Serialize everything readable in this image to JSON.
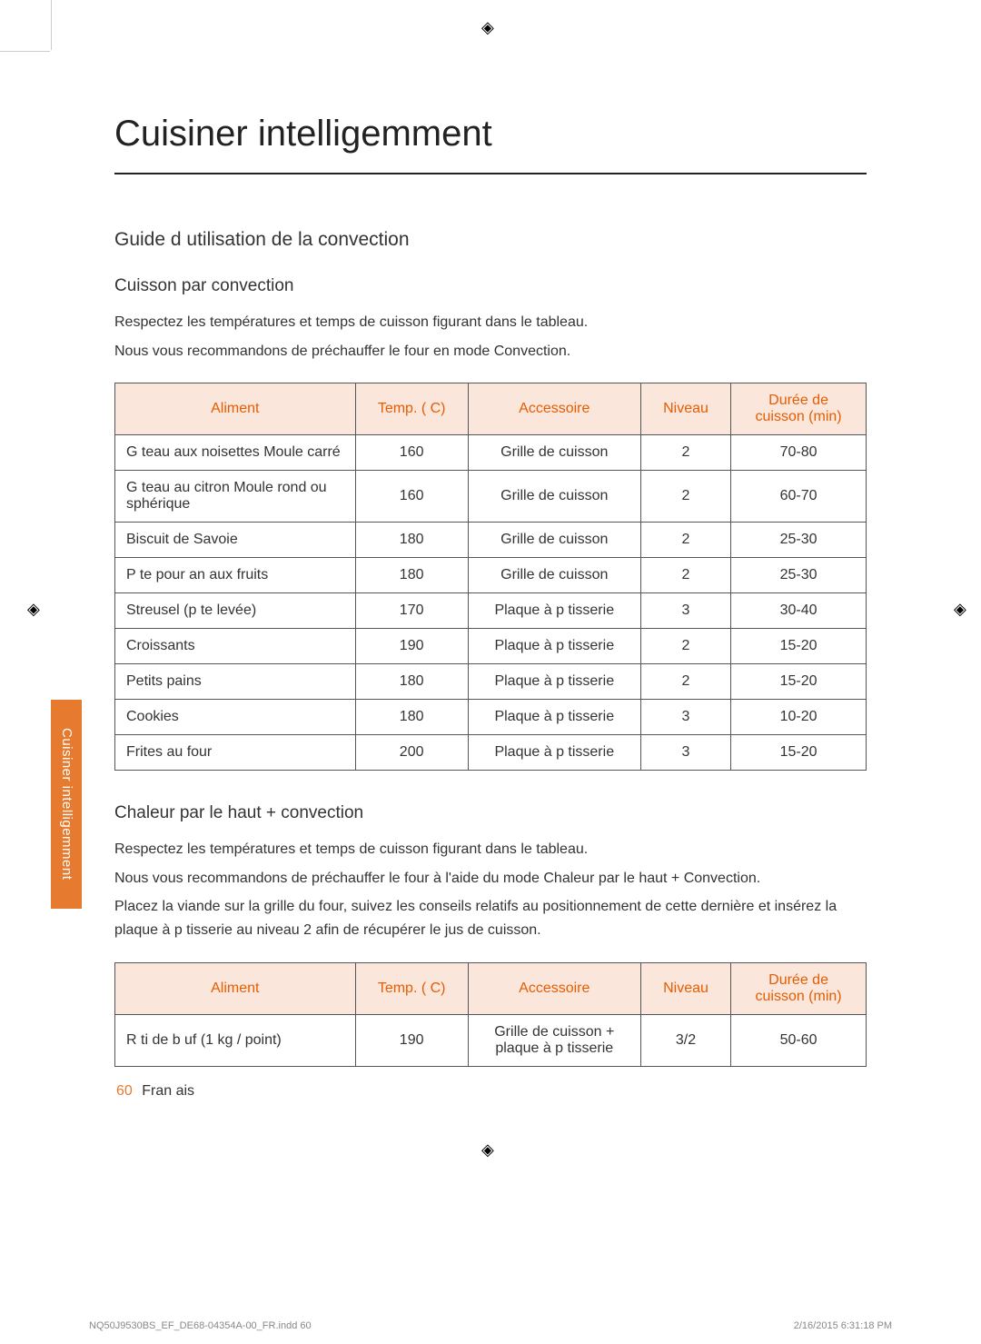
{
  "title": "Cuisiner intelligemment",
  "sideTab": "Cuisiner intelligemment",
  "section1_heading": "Guide d utilisation de la convection",
  "section1_sub": "Cuisson par convection",
  "section1_p1": "Respectez les températures et temps de cuisson figurant dans le tableau.",
  "section1_p2": "Nous vous recommandons de préchauffer le four en mode Convection.",
  "tableHeaders": {
    "aliment": "Aliment",
    "temp": "Temp. ( C)",
    "acc": "Accessoire",
    "niv": "Niveau",
    "dur": "Durée de cuisson (min)"
  },
  "table1": [
    {
      "aliment": "G teau aux noisettes Moule carré",
      "temp": "160",
      "acc": "Grille de cuisson",
      "niv": "2",
      "dur": "70-80"
    },
    {
      "aliment": "G teau au citron Moule rond ou sphérique",
      "temp": "160",
      "acc": "Grille de cuisson",
      "niv": "2",
      "dur": "60-70"
    },
    {
      "aliment": "Biscuit de Savoie",
      "temp": "180",
      "acc": "Grille de cuisson",
      "niv": "2",
      "dur": "25-30"
    },
    {
      "aliment": "P te pour  an aux fruits",
      "temp": "180",
      "acc": "Grille de cuisson",
      "niv": "2",
      "dur": "25-30"
    },
    {
      "aliment": "Streusel (p te levée)",
      "temp": "170",
      "acc": "Plaque à p tisserie",
      "niv": "3",
      "dur": "30-40"
    },
    {
      "aliment": "Croissants",
      "temp": "190",
      "acc": "Plaque à p tisserie",
      "niv": "2",
      "dur": "15-20"
    },
    {
      "aliment": "Petits pains",
      "temp": "180",
      "acc": "Plaque à p tisserie",
      "niv": "2",
      "dur": "15-20"
    },
    {
      "aliment": "Cookies",
      "temp": "180",
      "acc": "Plaque à p tisserie",
      "niv": "3",
      "dur": "10-20"
    },
    {
      "aliment": "Frites au four",
      "temp": "200",
      "acc": "Plaque à p tisserie",
      "niv": "3",
      "dur": "15-20"
    }
  ],
  "section2_sub": "Chaleur par le haut + convection",
  "section2_p1": "Respectez les températures et temps de cuisson figurant dans le tableau.",
  "section2_p2": "Nous vous recommandons de préchauffer le four à l'aide du mode Chaleur par le haut + Convection.",
  "section2_p3": "Placez la viande sur la grille du four, suivez les conseils relatifs au positionnement de cette dernière et insérez la plaque à p tisserie au niveau 2 afin de récupérer le jus de cuisson.",
  "table2": [
    {
      "aliment": "R ti de b uf (1 kg /  point)",
      "temp": "190",
      "acc": "Grille de cuisson + plaque à p tisserie",
      "niv": "3/2",
      "dur": "50-60"
    }
  ],
  "footer": {
    "page": "60",
    "lang": "Fran ais"
  },
  "printFooter": {
    "left": "NQ50J9530BS_EF_DE68-04354A-00_FR.indd   60",
    "right": "2/16/2015   6:31:18 PM"
  }
}
